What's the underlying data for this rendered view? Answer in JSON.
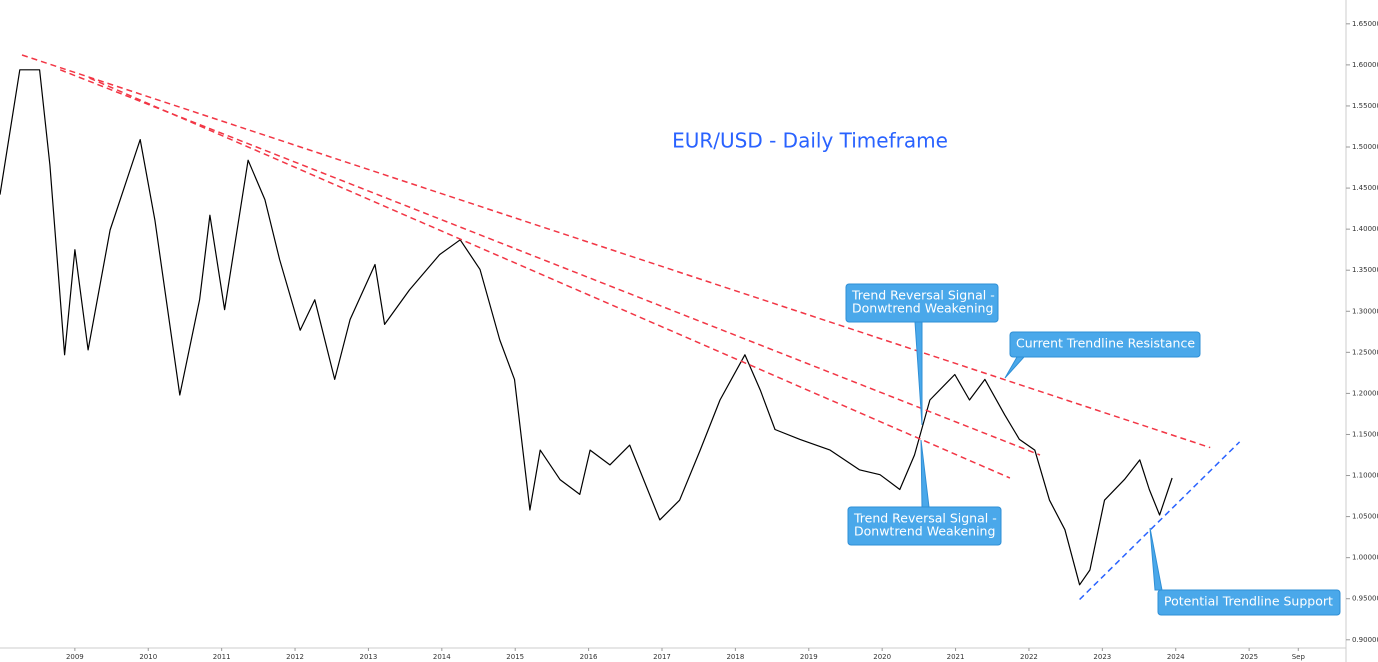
{
  "chart_data": {
    "type": "line",
    "title": "EUR/USD - Daily Timeframe",
    "x": [
      2007.98,
      2008.25,
      2008.52,
      2008.66,
      2008.86,
      2009.0,
      2009.18,
      2009.48,
      2009.89,
      2010.09,
      2010.43,
      2010.7,
      2010.84,
      2011.04,
      2011.36,
      2011.59,
      2011.79,
      2012.07,
      2012.27,
      2012.54,
      2012.75,
      2013.09,
      2013.22,
      2013.56,
      2013.97,
      2014.25,
      2014.52,
      2014.79,
      2014.99,
      2015.2,
      2015.34,
      2015.61,
      2015.88,
      2016.02,
      2016.29,
      2016.56,
      2016.97,
      2017.24,
      2017.52,
      2017.79,
      2018.13,
      2018.34,
      2018.54,
      2018.88,
      2019.29,
      2019.69,
      2019.97,
      2020.24,
      2020.44,
      2020.65,
      2020.99,
      2021.19,
      2021.4,
      2021.67,
      2021.87,
      2022.08,
      2022.28,
      2022.49,
      2022.69,
      2022.83,
      2023.03,
      2023.3,
      2023.51,
      2023.64,
      2023.78,
      2023.95
    ],
    "series": [
      {
        "color": "#000000",
        "values": [
          1.442,
          1.594,
          1.594,
          1.478,
          1.247,
          1.375,
          1.253,
          1.399,
          1.509,
          1.411,
          1.198,
          1.314,
          1.417,
          1.302,
          1.484,
          1.436,
          1.363,
          1.277,
          1.314,
          1.217,
          1.29,
          1.357,
          1.284,
          1.326,
          1.369,
          1.387,
          1.351,
          1.265,
          1.217,
          1.058,
          1.131,
          1.095,
          1.077,
          1.131,
          1.113,
          1.137,
          1.046,
          1.07,
          1.131,
          1.192,
          1.247,
          1.204,
          1.156,
          1.144,
          1.131,
          1.107,
          1.101,
          1.083,
          1.125,
          1.192,
          1.223,
          1.192,
          1.217,
          1.174,
          1.144,
          1.131,
          1.07,
          1.034,
          0.967,
          0.985,
          1.07,
          1.095,
          1.119,
          1.083,
          1.052,
          1.097
        ]
      }
    ],
    "trendlines": [
      {
        "color": "#f23645",
        "x": [
          2008.28,
          2024.47
        ],
        "values": [
          1.612,
          1.134
        ]
      },
      {
        "color": "#f23645",
        "x": [
          2008.8,
          2022.15
        ],
        "values": [
          1.594,
          1.125
        ]
      },
      {
        "color": "#f23645",
        "x": [
          2009.2,
          2021.74
        ],
        "values": [
          1.584,
          1.097
        ]
      },
      {
        "color": "#2962ff",
        "x": [
          2022.69,
          2024.87
        ],
        "values": [
          0.949,
          1.141
        ]
      }
    ],
    "annotations": [
      {
        "lines": [
          "Trend Reversal Signal -",
          "Donwtrend Weakening"
        ]
      },
      {
        "lines": [
          "Current Trendline Resistance"
        ]
      },
      {
        "lines": [
          "Trend Reversal Signal -",
          "Donwtrend Weakening"
        ]
      },
      {
        "lines": [
          "Potential Trendline Support"
        ]
      }
    ],
    "xlim": [
      2007.98,
      2026.32
    ],
    "ylim": [
      0.89,
      1.679
    ],
    "xticks": [
      2009,
      2010,
      2011,
      2012,
      2013,
      2014,
      2015,
      2016,
      2017,
      2018,
      2019,
      2020,
      2021,
      2022,
      2023,
      2024,
      2025,
      {
        "value": 2025.67,
        "label": "Sep"
      }
    ],
    "yticks": [
      {
        "value": 0.9,
        "label": "0.90000"
      },
      {
        "value": 0.95,
        "label": "0.95000"
      },
      {
        "value": 1.0,
        "label": "1.00000"
      },
      {
        "value": 1.05,
        "label": "1.05000"
      },
      {
        "value": 1.1,
        "label": "1.10000"
      },
      {
        "value": 1.15,
        "label": "1.15000"
      },
      {
        "value": 1.2,
        "label": "1.20000"
      },
      {
        "value": 1.25,
        "label": "1.25000"
      },
      {
        "value": 1.3,
        "label": "1.30000"
      },
      {
        "value": 1.35,
        "label": "1.35000"
      },
      {
        "value": 1.4,
        "label": "1.40000"
      },
      {
        "value": 1.45,
        "label": "1.45000"
      },
      {
        "value": 1.5,
        "label": "1.50000"
      },
      {
        "value": 1.55,
        "label": "1.55000"
      },
      {
        "value": 1.6,
        "label": "1.60000"
      },
      {
        "value": 1.65,
        "label": "1.65000"
      }
    ]
  }
}
